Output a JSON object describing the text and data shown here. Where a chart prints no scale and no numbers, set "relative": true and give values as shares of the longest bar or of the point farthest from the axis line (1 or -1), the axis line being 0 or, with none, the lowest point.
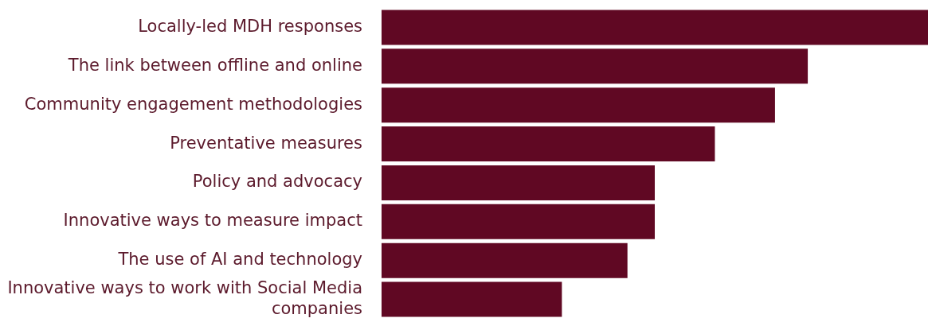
{
  "chart_data": {
    "type": "bar",
    "orientation": "horizontal",
    "relative": true,
    "categories": [
      "Locally-led MDH responses",
      "The link between offline and online",
      "Community engagement methodologies",
      "Preventative measures",
      "Policy and advocacy",
      "Innovative ways to measure impact",
      "The use of AI and technology",
      "Innovative ways to work with Social Media companies"
    ],
    "values": [
      1,
      0.78,
      0.72,
      0.61,
      0.5,
      0.5,
      0.45,
      0.33
    ],
    "color": "#600823",
    "legend": false
  }
}
